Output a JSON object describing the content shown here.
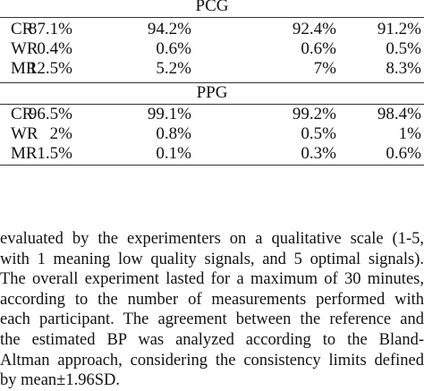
{
  "table": {
    "sections": [
      {
        "title": "PCG",
        "rows": [
          {
            "label": "CR",
            "cells": [
              "87.1%",
              "94.2%",
              "92.4%",
              "91.2%"
            ]
          },
          {
            "label": "WR",
            "cells": [
              "0.4%",
              "0.6%",
              "0.6%",
              "0.5%"
            ]
          },
          {
            "label": "MR",
            "cells": [
              "12.5%",
              "5.2%",
              "7%",
              "8.3%"
            ]
          }
        ]
      },
      {
        "title": "PPG",
        "rows": [
          {
            "label": "CR",
            "cells": [
              "96.5%",
              "99.1%",
              "99.2%",
              "98.4%"
            ]
          },
          {
            "label": "WR",
            "cells": [
              "2%",
              "0.8%",
              "0.5%",
              "1%"
            ]
          },
          {
            "label": "MR",
            "cells": [
              "1.5%",
              "0.1%",
              "0.3%",
              "0.6%"
            ]
          }
        ]
      }
    ]
  },
  "paragraph": {
    "lines": [
      "evaluated by the experimenters on a qualitative scale (1-5,",
      "with 1 meaning low quality signals, and 5 optimal signals).",
      "The overall experiment lasted for a maximum of 30 minutes,",
      "according to the number of measurements performed with",
      "each participant. The agreement between the reference and",
      "the estimated BP was analyzed according to the Bland-",
      "Altman approach, considering the consistency limits defined",
      "by mean±1.96SD."
    ]
  }
}
